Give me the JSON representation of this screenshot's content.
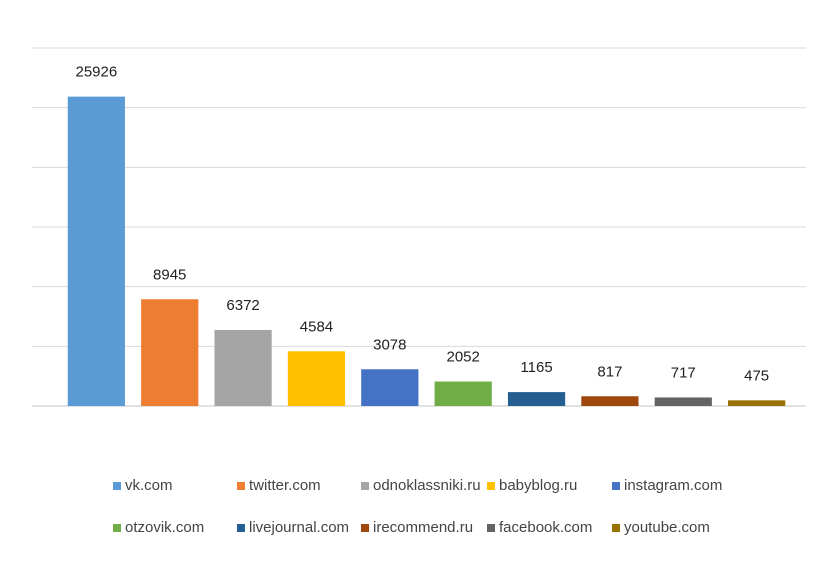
{
  "chart_data": {
    "type": "bar",
    "title": "",
    "xlabel": "",
    "ylabel": "",
    "ylim": [
      0,
      30000
    ],
    "grid": true,
    "legend_placement": "bottom",
    "categories": [
      "vk.com",
      "twitter.com",
      "odnoklassniki.ru",
      "babyblog.ru",
      "instagram.com",
      "otzovik.com",
      "livejournal.com",
      "irecommend.ru",
      "facebook.com",
      "youtube.com"
    ],
    "values": [
      25926,
      8945,
      6372,
      4584,
      3078,
      2052,
      1165,
      817,
      717,
      475
    ],
    "colors": [
      "#5B9BD5",
      "#ED7D31",
      "#A5A5A5",
      "#FFC000",
      "#4472C4",
      "#70AD47",
      "#255E91",
      "#9E480E",
      "#636363",
      "#997300"
    ],
    "gridline_color": "#d9d9d9"
  }
}
